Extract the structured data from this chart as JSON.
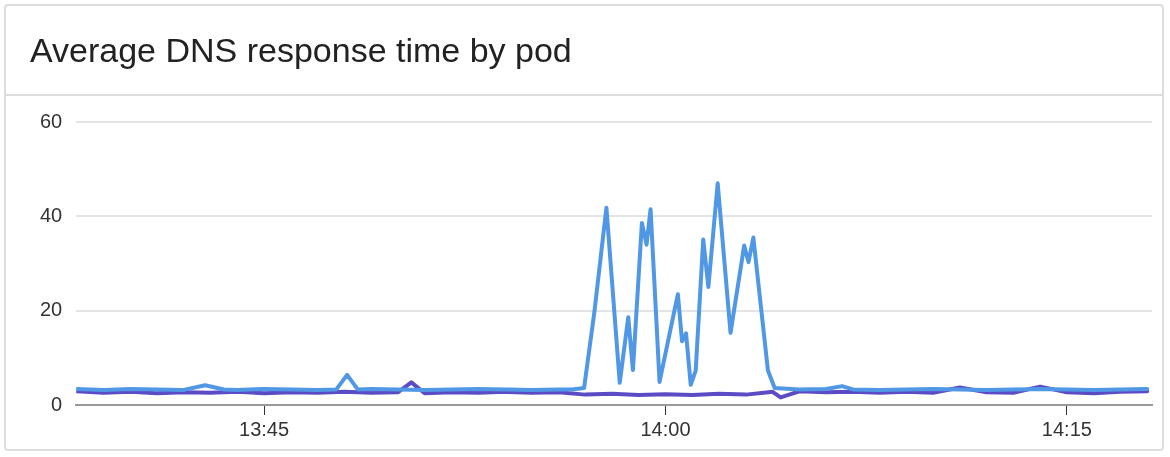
{
  "chart_data": {
    "type": "line",
    "title": "Average DNS response time by pod",
    "xlim": [
      13.633,
      14.303
    ],
    "xticks": [
      {
        "value": 13.75,
        "label": "13:45"
      },
      {
        "value": 14,
        "label": "14:00"
      },
      {
        "value": 14.25,
        "label": "14:15"
      }
    ],
    "ylim": [
      0,
      60
    ],
    "yticks": [
      0,
      20,
      40,
      60
    ],
    "grid": "y",
    "legend": false,
    "series": [
      {
        "color": "#5098e6",
        "x": [
          13.6333,
          13.65,
          13.6667,
          13.6833,
          13.7,
          13.7133,
          13.725,
          13.7333,
          13.75,
          13.7667,
          13.7833,
          13.795,
          13.8017,
          13.8083,
          13.8167,
          13.8333,
          13.85,
          13.8667,
          13.8833,
          13.9,
          13.9167,
          13.9333,
          13.9417,
          13.9493,
          13.9557,
          13.9632,
          13.9715,
          13.9768,
          13.9797,
          13.9853,
          13.9882,
          13.9907,
          13.9963,
          14.0077,
          14.0103,
          14.0128,
          14.0157,
          14.0188,
          14.0235,
          14.0267,
          14.0325,
          14.0405,
          14.049,
          14.0517,
          14.0547,
          14.0638,
          14.068,
          14.0833,
          14.1,
          14.11,
          14.1167,
          14.1333,
          14.15,
          14.1667,
          14.1833,
          14.2,
          14.2167,
          14.2333,
          14.25,
          14.2667,
          14.2833,
          14.3
        ],
        "values": [
          3.4,
          3.2,
          3.4,
          3.3,
          3.2,
          4.2,
          3.3,
          3.2,
          3.4,
          3.3,
          3.2,
          3.3,
          6.4,
          3.3,
          3.4,
          3.3,
          3.2,
          3.3,
          3.4,
          3.3,
          3.2,
          3.3,
          3.3,
          3.6,
          19.7,
          41.8,
          4.7,
          18.6,
          7.4,
          38.6,
          34,
          41.5,
          4.9,
          23.5,
          13.5,
          15.2,
          4.3,
          7.3,
          35.1,
          25,
          47,
          15.3,
          33.8,
          30.3,
          35.5,
          7.3,
          3.6,
          3.3,
          3.4,
          4,
          3.3,
          3.2,
          3.3,
          3.4,
          3.3,
          3.2,
          3.3,
          3.4,
          3.3,
          3.2,
          3.3,
          3.4
        ]
      },
      {
        "color": "#5b4bc4",
        "x": [
          13.6333,
          13.65,
          13.6667,
          13.6833,
          13.7,
          13.7167,
          13.7333,
          13.75,
          13.7667,
          13.7833,
          13.8,
          13.8167,
          13.8333,
          13.8417,
          13.85,
          13.8667,
          13.8833,
          13.9,
          13.9167,
          13.9333,
          13.95,
          13.9667,
          13.9833,
          14.0,
          14.0167,
          14.0333,
          14.05,
          14.0667,
          14.0717,
          14.0833,
          14.1,
          14.1167,
          14.1333,
          14.15,
          14.1667,
          14.1833,
          14.2,
          14.2167,
          14.2333,
          14.25,
          14.2667,
          14.2833,
          14.3
        ],
        "values": [
          2.9,
          2.6,
          2.8,
          2.5,
          2.7,
          2.6,
          2.8,
          2.5,
          2.7,
          2.6,
          2.8,
          2.6,
          2.7,
          4.8,
          2.5,
          2.7,
          2.6,
          2.8,
          2.6,
          2.7,
          2.2,
          2.4,
          2.1,
          2.3,
          2.1,
          2.4,
          2.2,
          2.8,
          1.6,
          2.9,
          2.7,
          2.8,
          2.6,
          2.8,
          2.6,
          3.7,
          2.7,
          2.6,
          3.9,
          2.7,
          2.5,
          2.8,
          2.9
        ]
      }
    ]
  }
}
